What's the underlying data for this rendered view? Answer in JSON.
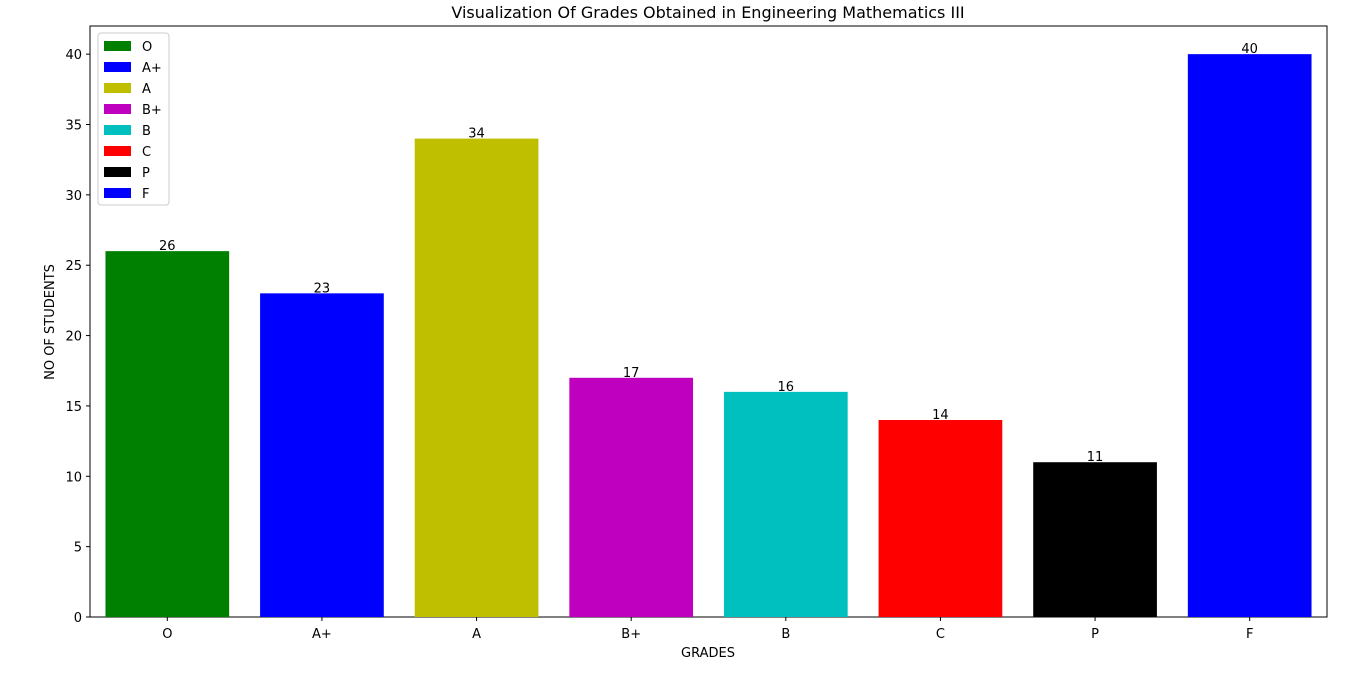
{
  "chart_data": {
    "type": "bar",
    "title": "Visualization Of Grades Obtained in Engineering Mathematics III",
    "xlabel": "GRADES",
    "ylabel": "NO OF STUDENTS",
    "categories": [
      "O",
      "A+",
      "A",
      "B+",
      "B",
      "C",
      "P",
      "F"
    ],
    "values": [
      26,
      23,
      34,
      17,
      16,
      14,
      11,
      40
    ],
    "colors": [
      "#008000",
      "#0000ff",
      "#bfbf00",
      "#bf00bf",
      "#00bfbf",
      "#ff0000",
      "#000000",
      "#0000ff"
    ],
    "data_labels": [
      "26",
      "23",
      "34",
      "17",
      "16",
      "14",
      "11",
      "40"
    ],
    "ylim": [
      0,
      42
    ],
    "yticks": [
      0,
      5,
      10,
      15,
      20,
      25,
      30,
      35,
      40
    ],
    "grid": false,
    "legend": {
      "placement": "top-left",
      "entries": [
        "O",
        "A+",
        "A",
        "B+",
        "B",
        "C",
        "P",
        "F"
      ]
    }
  }
}
